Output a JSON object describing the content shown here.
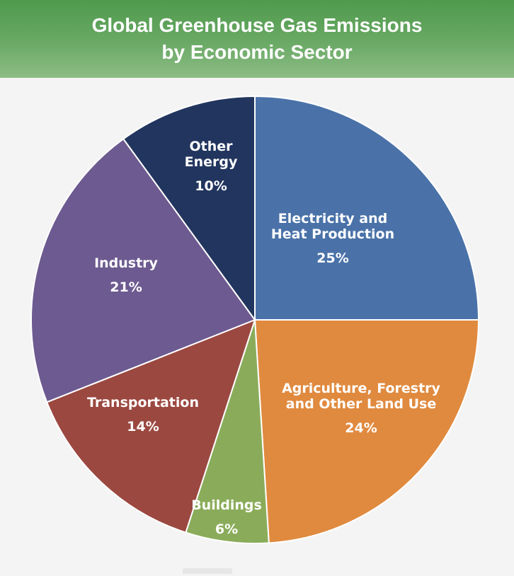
{
  "header": {
    "title_line1": "Global Greenhouse Gas Emissions",
    "title_line2": "by Economic Sector"
  },
  "chart_data": {
    "type": "pie",
    "title": "Global Greenhouse Gas Emissions by Economic Sector",
    "unit": "%",
    "slices": [
      {
        "name": "Electricity and Heat Production",
        "label_lines": [
          "Electricity and",
          "Heat Production"
        ],
        "value": 25,
        "value_label": "25%",
        "color": "#4a72a8"
      },
      {
        "name": "Agriculture, Forestry and Other Land Use",
        "label_lines": [
          "Agriculture, Forestry",
          "and Other Land Use"
        ],
        "value": 24,
        "value_label": "24%",
        "color": "#e08a3f"
      },
      {
        "name": "Buildings",
        "label_lines": [
          "Buildings"
        ],
        "value": 6,
        "value_label": "6%",
        "color": "#8aac5a"
      },
      {
        "name": "Transportation",
        "label_lines": [
          "Transportation"
        ],
        "value": 14,
        "value_label": "14%",
        "color": "#9b4840"
      },
      {
        "name": "Industry",
        "label_lines": [
          "Industry"
        ],
        "value": 21,
        "value_label": "21%",
        "color": "#6c5a90"
      },
      {
        "name": "Other Energy",
        "label_lines": [
          "Other",
          "Energy"
        ],
        "value": 10,
        "value_label": "10%",
        "color": "#22355e"
      }
    ]
  }
}
